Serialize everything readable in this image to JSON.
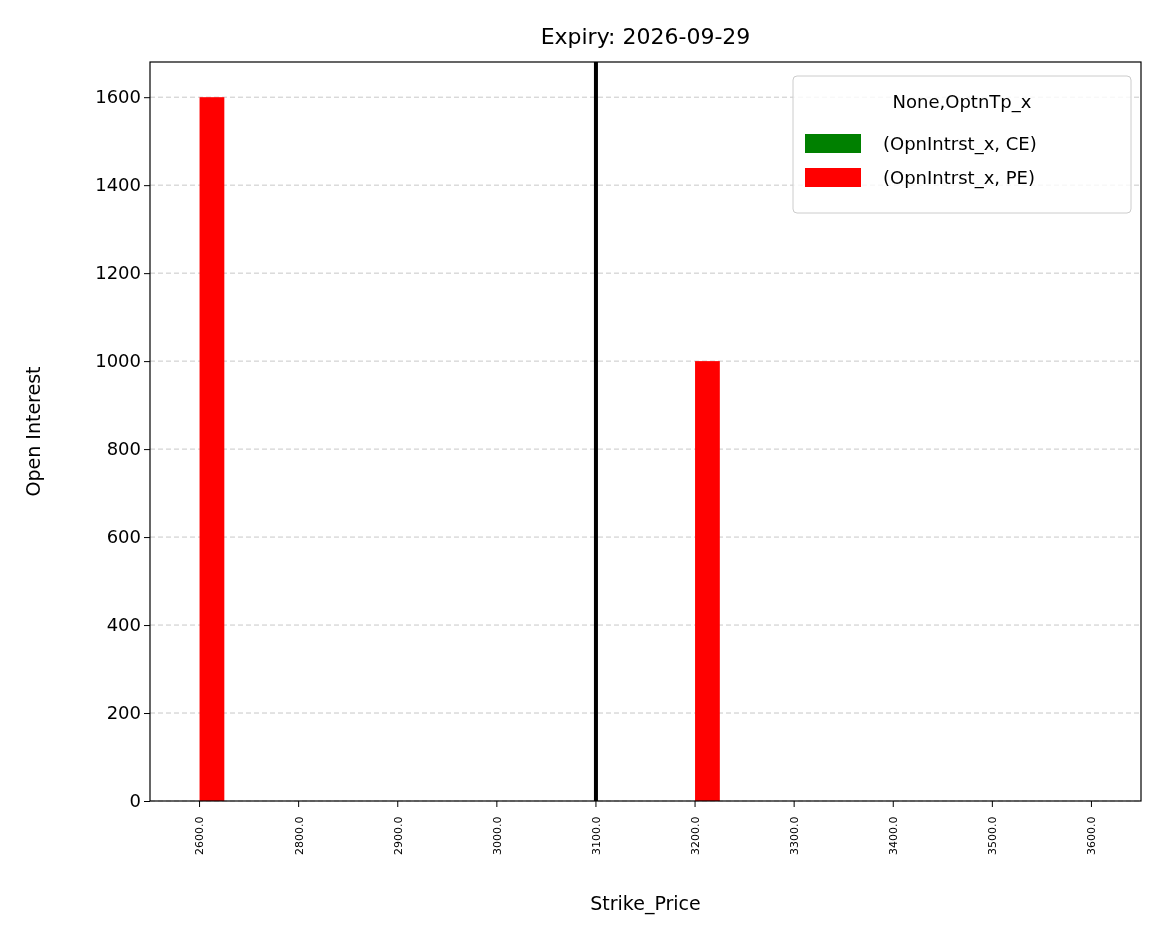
{
  "chart_data": {
    "type": "bar",
    "title": "Expiry: 2026-09-29",
    "xlabel": "Strike_Price",
    "ylabel": "Open Interest",
    "legend_title": "None,OptnTp_x",
    "categories": [
      "2600.0",
      "2800.0",
      "2900.0",
      "3000.0",
      "3100.0",
      "3200.0",
      "3300.0",
      "3400.0",
      "3500.0",
      "3600.0"
    ],
    "series": [
      {
        "name": "(OpnIntrst_x, CE)",
        "color": "#008000",
        "values": [
          0,
          0,
          0,
          0,
          0,
          0,
          0,
          0,
          0,
          0
        ]
      },
      {
        "name": "(OpnIntrst_x, PE)",
        "color": "#ff0000",
        "values": [
          1600,
          0,
          0,
          0,
          0,
          1000,
          0,
          0,
          0,
          0
        ]
      }
    ],
    "ylim": [
      0,
      1680
    ],
    "yticks": [
      0,
      200,
      400,
      600,
      800,
      1000,
      1200,
      1400,
      1600
    ],
    "grid": "y",
    "legend": "top right",
    "ref_lines": [
      {
        "axis": "x",
        "value": "3100.0",
        "color": "#000000"
      }
    ]
  }
}
